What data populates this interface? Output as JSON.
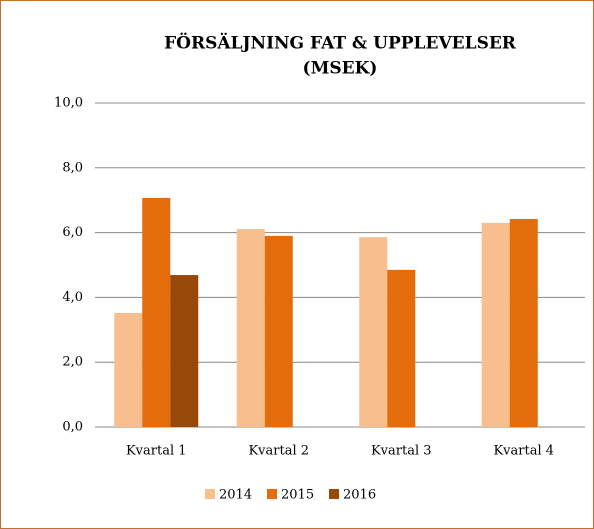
{
  "chart_data": {
    "type": "bar",
    "title": [
      "FÖRSÄLJNING FAT & UPPLEVELSER",
      "(MSEK)"
    ],
    "categories": [
      "Kvartal 1",
      "Kvartal 2",
      "Kvartal 3",
      "Kvartal 4"
    ],
    "series": [
      {
        "name": "2014",
        "color": "#f9be8e",
        "values": [
          3.52,
          6.11,
          5.86,
          6.3
        ]
      },
      {
        "name": "2015",
        "color": "#e46c0a",
        "values": [
          7.07,
          5.9,
          4.85,
          6.42
        ]
      },
      {
        "name": "2016",
        "color": "#984807",
        "values": [
          4.69,
          null,
          null,
          null
        ]
      }
    ],
    "ylim": [
      0,
      10
    ],
    "yticks": [
      {
        "value": 0,
        "label": "0,0"
      },
      {
        "value": 2,
        "label": "2,0"
      },
      {
        "value": 4,
        "label": "4,0"
      },
      {
        "value": 6,
        "label": "6,0"
      },
      {
        "value": 8,
        "label": "8,0"
      },
      {
        "value": 10,
        "label": "10,0"
      }
    ],
    "grid": true,
    "legend": "bottom"
  }
}
